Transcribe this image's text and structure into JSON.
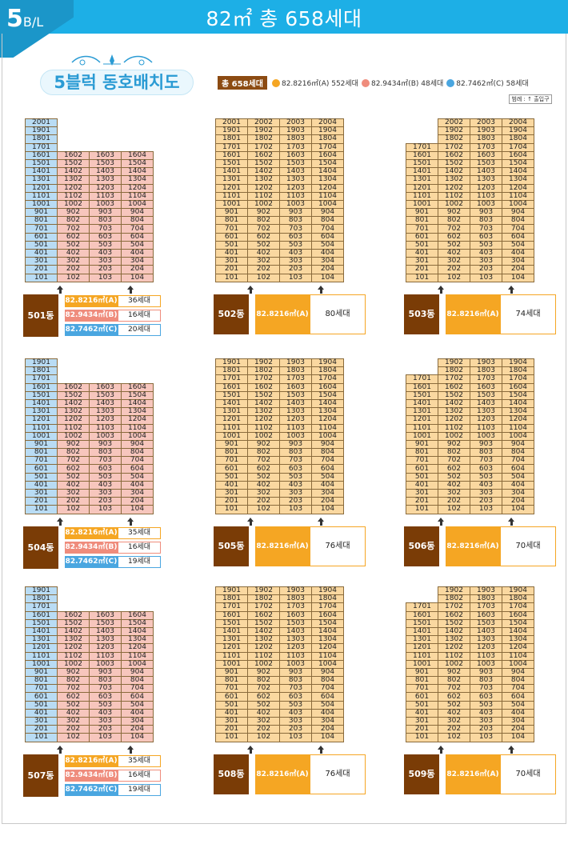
{
  "header": {
    "badge_big": "5",
    "badge_small": "B/L",
    "title": "82㎡ 총 658세대"
  },
  "heading": "5블럭 동호배치도",
  "legend": {
    "total": "총 658세대",
    "items": [
      {
        "label": "82.8216㎡(A) 552세대",
        "color": "#f5a623"
      },
      {
        "label": "82.9434㎡(B) 48세대",
        "color": "#ef8c7c"
      },
      {
        "label": "82.7462㎡(C) 58세대",
        "color": "#4aa6e0"
      }
    ],
    "note": "범례 : ↑ 출입구"
  },
  "types": {
    "A": {
      "label": "82.8216㎡(A)",
      "color": "#f5a623"
    },
    "B": {
      "label": "82.9434㎡(B)",
      "color": "#ef8c7c"
    },
    "C": {
      "label": "82.7462㎡(C)",
      "color": "#4aa6e0"
    }
  },
  "buildings": [
    {
      "dong": "501동",
      "layout": "L",
      "top_floor": 20,
      "counts": [
        {
          "type": "A",
          "text": "36세대"
        },
        {
          "type": "B",
          "text": "16세대"
        },
        {
          "type": "C",
          "text": "20세대"
        }
      ]
    },
    {
      "dong": "502동",
      "layout": "M20",
      "top_floor": 20,
      "counts": [
        {
          "type": "A",
          "text": "80세대"
        }
      ]
    },
    {
      "dong": "503동",
      "layout": "R",
      "top_floor": 20,
      "counts": [
        {
          "type": "A",
          "text": "74세대"
        }
      ]
    },
    {
      "dong": "504동",
      "layout": "L",
      "top_floor": 19,
      "counts": [
        {
          "type": "A",
          "text": "35세대"
        },
        {
          "type": "B",
          "text": "16세대"
        },
        {
          "type": "C",
          "text": "19세대"
        }
      ]
    },
    {
      "dong": "505동",
      "layout": "M19",
      "top_floor": 19,
      "counts": [
        {
          "type": "A",
          "text": "76세대"
        }
      ]
    },
    {
      "dong": "506동",
      "layout": "R",
      "top_floor": 19,
      "counts": [
        {
          "type": "A",
          "text": "70세대"
        }
      ]
    },
    {
      "dong": "507동",
      "layout": "L",
      "top_floor": 19,
      "counts": [
        {
          "type": "A",
          "text": "35세대"
        },
        {
          "type": "B",
          "text": "16세대"
        },
        {
          "type": "C",
          "text": "19세대"
        }
      ]
    },
    {
      "dong": "508동",
      "layout": "M19",
      "top_floor": 19,
      "counts": [
        {
          "type": "A",
          "text": "76세대"
        }
      ]
    },
    {
      "dong": "509동",
      "layout": "R",
      "top_floor": 19,
      "counts": [
        {
          "type": "A",
          "text": "70세대"
        }
      ]
    }
  ]
}
